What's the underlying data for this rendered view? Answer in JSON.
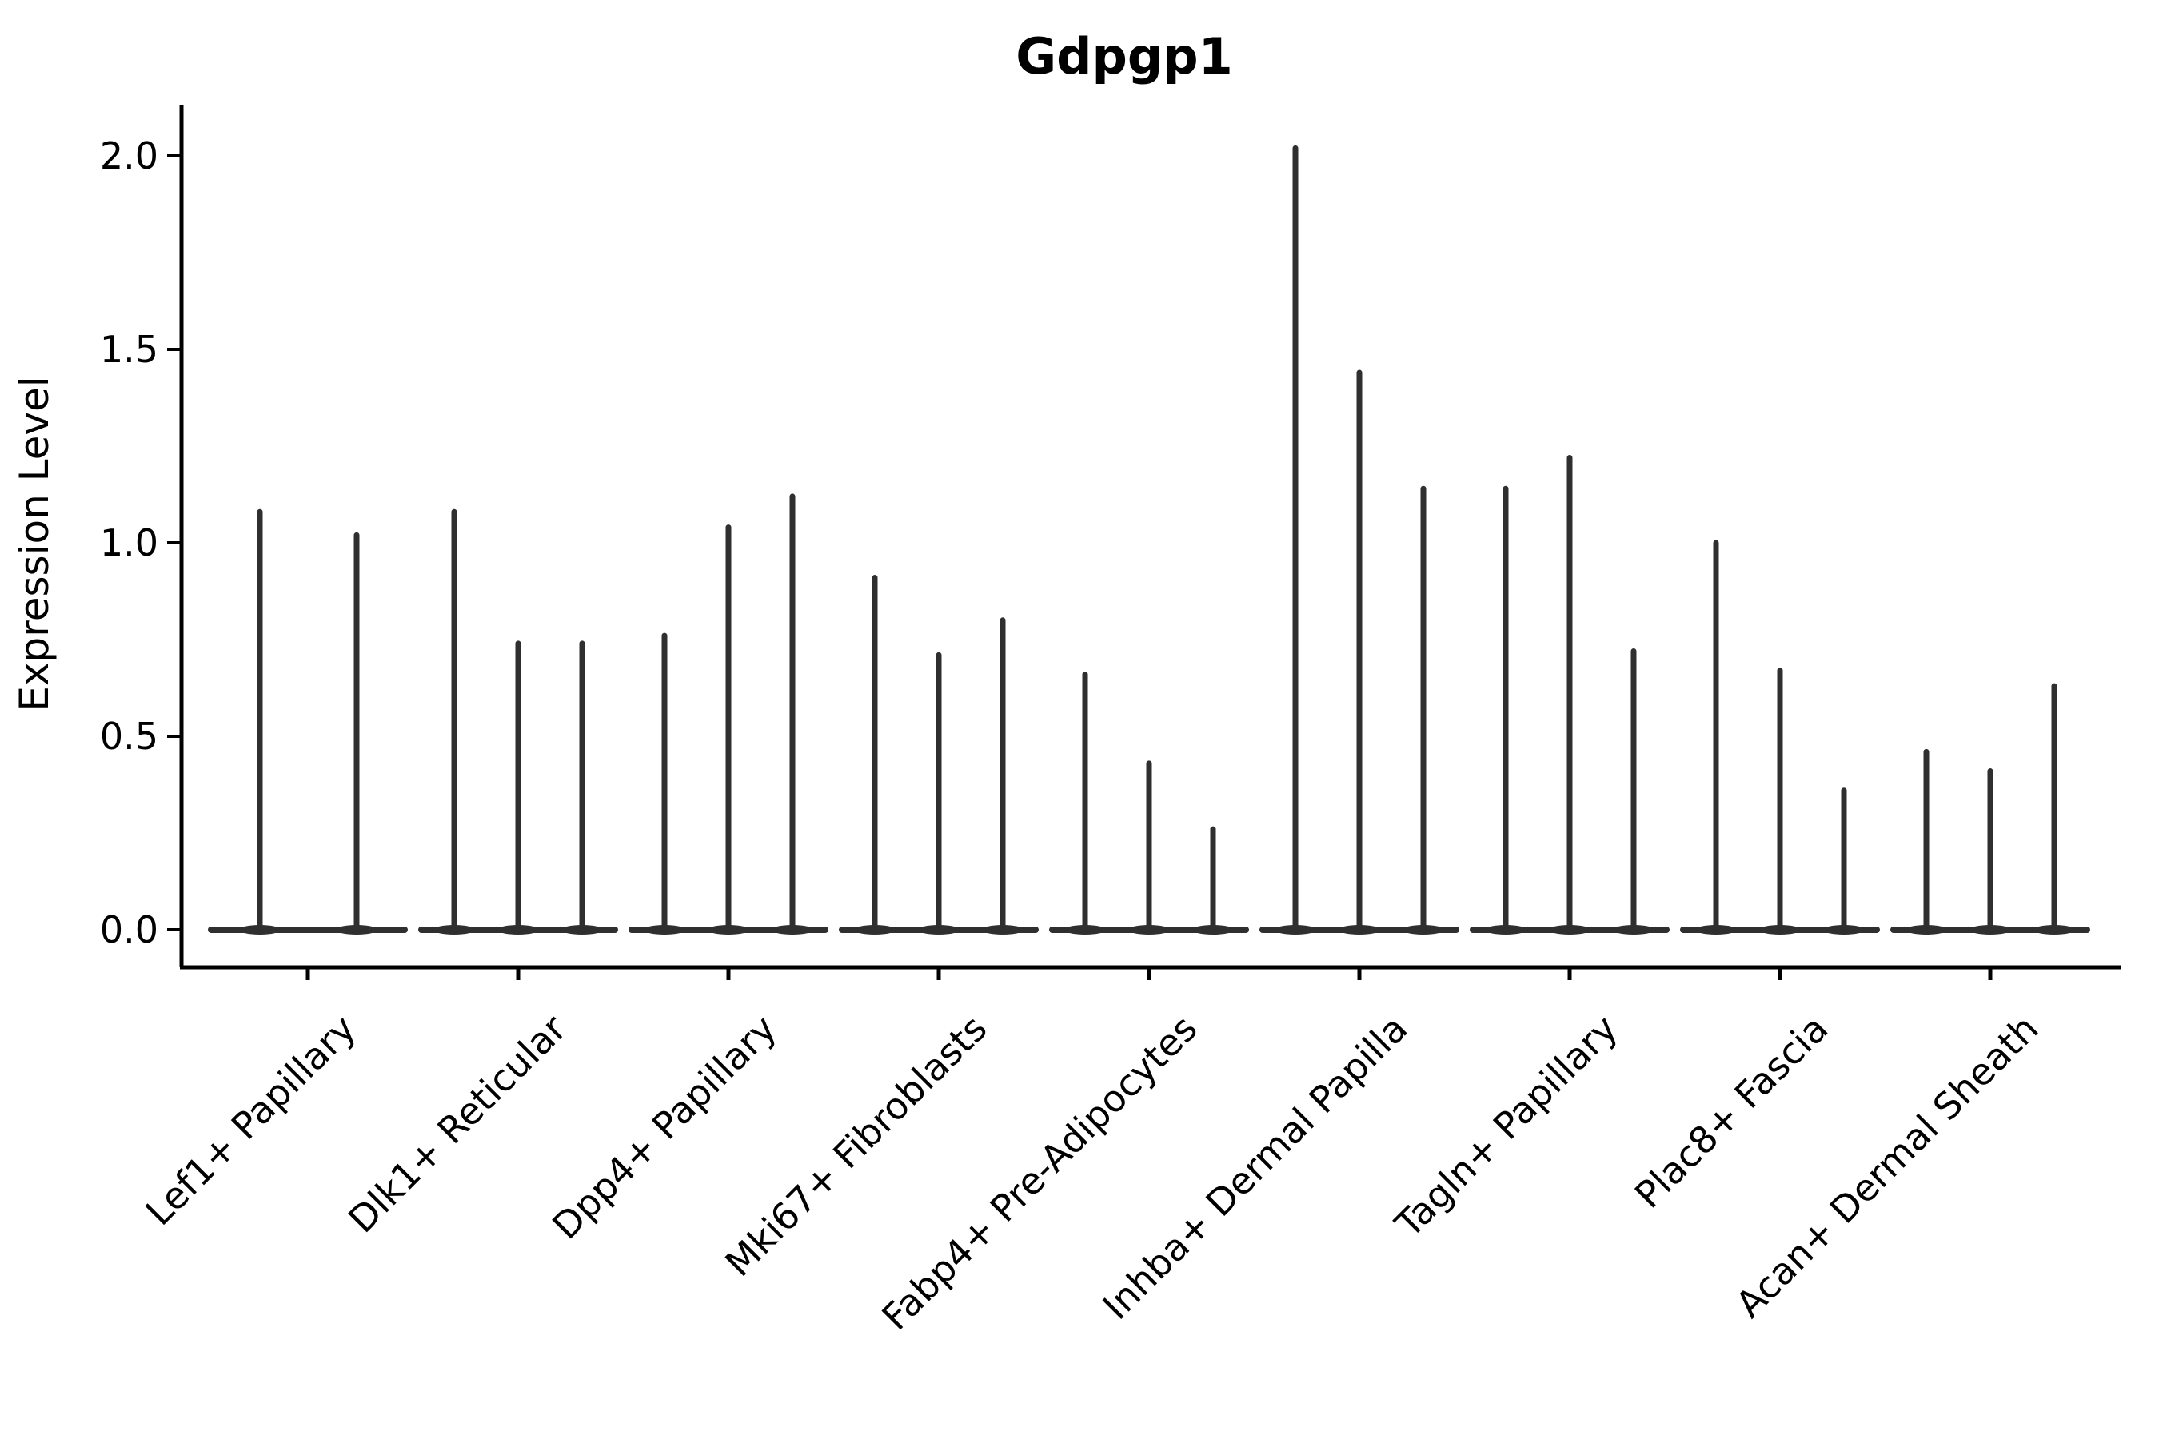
{
  "title": "Gdpgp1",
  "axes": {
    "ylabel": "Expression Level",
    "ytick_labels": [
      "0.0",
      "0.5",
      "1.0",
      "1.5",
      "2.0"
    ]
  },
  "colors": {
    "violin": "#2f2f2f",
    "axis": "#000000",
    "text": "#000000",
    "background": "#ffffff"
  },
  "chart_data": {
    "type": "violin",
    "title": "Gdpgp1",
    "xlabel": "",
    "ylabel": "Expression Level",
    "ylim": [
      0,
      2.1
    ],
    "yticks": [
      0.0,
      0.5,
      1.0,
      1.5,
      2.0
    ],
    "grid": false,
    "legend": null,
    "categories": [
      "Lef1+ Papillary",
      "Dlk1+ Reticular",
      "Dpp4+ Papillary",
      "Mki67+ Fibroblasts",
      "Fabp4+ Pre-Adipocytes",
      "Inhba+ Dermal Papilla",
      "Tagln+ Papillary",
      "Plac8+ Fascia",
      "Acan+ Dermal Sheath"
    ],
    "groups": [
      {
        "category": "Lef1+ Papillary",
        "spike_heights": [
          1.08,
          1.02
        ]
      },
      {
        "category": "Dlk1+ Reticular",
        "spike_heights": [
          1.08,
          0.74,
          0.74
        ]
      },
      {
        "category": "Dpp4+ Papillary",
        "spike_heights": [
          0.76,
          1.04,
          1.12
        ]
      },
      {
        "category": "Mki67+ Fibroblasts",
        "spike_heights": [
          0.91,
          0.71,
          0.8
        ]
      },
      {
        "category": "Fabp4+ Pre-Adipocytes",
        "spike_heights": [
          0.66,
          0.43,
          0.26
        ]
      },
      {
        "category": "Inhba+ Dermal Papilla",
        "spike_heights": [
          2.02,
          1.44,
          1.14
        ]
      },
      {
        "category": "Tagln+ Papillary",
        "spike_heights": [
          1.14,
          1.22,
          0.72
        ]
      },
      {
        "category": "Plac8+ Fascia",
        "spike_heights": [
          1.0,
          0.67,
          0.36
        ]
      },
      {
        "category": "Acan+ Dermal Sheath",
        "spike_heights": [
          0.46,
          0.41,
          0.63
        ]
      }
    ]
  }
}
